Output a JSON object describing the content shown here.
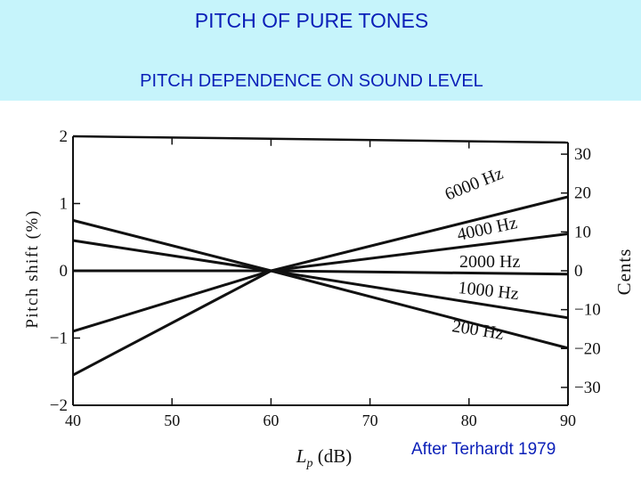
{
  "header": {
    "title": "PITCH OF PURE TONES",
    "subtitle": "PITCH DEPENDENCE ON SOUND LEVEL"
  },
  "credit": "After Terhardt 1979",
  "colors": {
    "header_bg": "#c6f4fb",
    "header_text": "#0b1fb8",
    "ink": "#111111"
  },
  "chart_data": {
    "type": "line",
    "xlabel": "Lp (dB)",
    "ylabel": "Pitch shift (%)",
    "y2label": "Cents",
    "xlim": [
      40,
      90
    ],
    "ylim": [
      -2,
      2
    ],
    "y2lim": [
      -34.6,
      34.6
    ],
    "x_ticks": [
      "40",
      "50",
      "60",
      "70",
      "80",
      "90"
    ],
    "y_ticks": [
      "2",
      "1",
      "0",
      "−1",
      "−2"
    ],
    "y2_ticks": [
      "30",
      "20",
      "10",
      "0",
      "−10",
      "−20",
      "−30"
    ],
    "grid": false,
    "series": [
      {
        "name": "6000 Hz",
        "x": [
          40,
          60,
          90
        ],
        "y": [
          -1.55,
          0,
          1.1
        ]
      },
      {
        "name": "4000 Hz",
        "x": [
          40,
          60,
          90
        ],
        "y": [
          -0.9,
          0,
          0.55
        ]
      },
      {
        "name": "2000 Hz",
        "x": [
          40,
          60,
          90
        ],
        "y": [
          0,
          0,
          -0.05
        ]
      },
      {
        "name": "1000 Hz",
        "x": [
          40,
          60,
          90
        ],
        "y": [
          0.45,
          0,
          -0.7
        ]
      },
      {
        "name": "200 Hz",
        "x": [
          40,
          60,
          90
        ],
        "y": [
          0.75,
          0,
          -1.15
        ]
      }
    ]
  }
}
